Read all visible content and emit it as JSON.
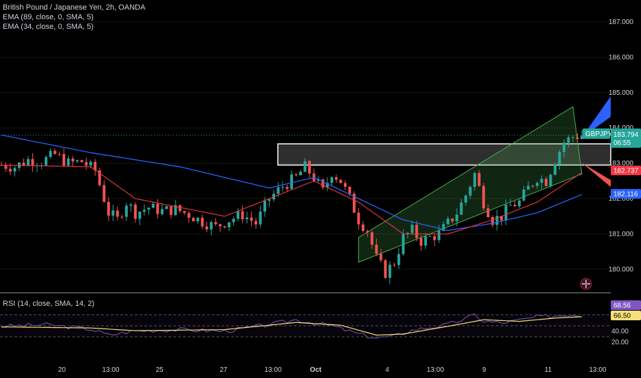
{
  "legend": {
    "symbol_line": "British Pound / Japanese Yen, 2h, OANDA",
    "ema_89": "EMA (89, close, 0, SMA, 5)",
    "ema_34": "EMA (34, close, 0, SMA, 5)",
    "rsi": "RSI (14, close, SMA, 14, 2)"
  },
  "price_tags": {
    "symbol": "GBPJPY",
    "last": "183.794",
    "countdown": "06:55",
    "ema_34": "182.737",
    "ema_89": "182.116"
  },
  "rsi_tags": {
    "rsi": "68.56",
    "rsi_ma": "66.50"
  },
  "colors": {
    "up": "#26a69a",
    "down": "#ef5350",
    "ema_89": "#2962ff",
    "ema_34": "#f23645",
    "rsi": "#7e57c2",
    "rsi_ma": "#f7e07a",
    "channel": "#4caf50"
  },
  "chart_data": {
    "type": "candlestick",
    "symbol": "GBPJPY",
    "timeframe": "2h",
    "y_ticks": [
      187.0,
      186.0,
      185.0,
      184.0,
      183.0,
      182.0,
      181.0,
      180.0
    ],
    "x_ticks": [
      "20",
      "13:00",
      "25",
      "27",
      "13:00",
      "Oct",
      "4",
      "13:00",
      "9",
      "11",
      "13:00"
    ],
    "rsi_ticks": [
      40.0,
      20.0
    ],
    "rsi_levels": [
      70,
      30
    ],
    "ylim": [
      179.3,
      187.5
    ],
    "close_path": [
      [
        0,
        182.95
      ],
      [
        3,
        182.9
      ],
      [
        6,
        183.1
      ],
      [
        9,
        183.05
      ],
      [
        12,
        183.25
      ],
      [
        15,
        183.0
      ],
      [
        18,
        183.05
      ],
      [
        21,
        182.8
      ],
      [
        24,
        181.6
      ],
      [
        26,
        181.4
      ],
      [
        28,
        181.9
      ],
      [
        30,
        181.6
      ],
      [
        33,
        181.75
      ],
      [
        36,
        181.65
      ],
      [
        39,
        181.7
      ],
      [
        42,
        181.55
      ],
      [
        45,
        181.35
      ],
      [
        48,
        181.2
      ],
      [
        51,
        181.4
      ],
      [
        54,
        181.55
      ],
      [
        57,
        181.3
      ],
      [
        60,
        182.0
      ],
      [
        63,
        182.35
      ],
      [
        66,
        182.6
      ],
      [
        68,
        182.9
      ],
      [
        70,
        182.6
      ],
      [
        72,
        182.2
      ],
      [
        74,
        182.75
      ],
      [
        76,
        182.5
      ],
      [
        78,
        182.0
      ],
      [
        80,
        181.4
      ],
      [
        82,
        181.1
      ],
      [
        84,
        180.3
      ],
      [
        86,
        179.9
      ],
      [
        88,
        180.2
      ],
      [
        90,
        180.9
      ],
      [
        92,
        181.1
      ],
      [
        94,
        180.8
      ],
      [
        96,
        180.9
      ],
      [
        98,
        181.0
      ],
      [
        100,
        181.3
      ],
      [
        102,
        181.6
      ],
      [
        104,
        182.1
      ],
      [
        106,
        182.7
      ],
      [
        108,
        181.9
      ],
      [
        110,
        181.4
      ],
      [
        112,
        181.5
      ],
      [
        114,
        181.8
      ],
      [
        116,
        181.9
      ],
      [
        118,
        182.3
      ],
      [
        120,
        182.6
      ],
      [
        122,
        182.5
      ],
      [
        124,
        183.1
      ],
      [
        126,
        183.6
      ],
      [
        128,
        183.75
      ],
      [
        130,
        183.794
      ]
    ],
    "ema_89_path": [
      [
        0,
        183.8
      ],
      [
        20,
        183.3
      ],
      [
        40,
        182.9
      ],
      [
        60,
        182.3
      ],
      [
        70,
        182.6
      ],
      [
        80,
        182.0
      ],
      [
        90,
        181.4
      ],
      [
        100,
        181.1
      ],
      [
        110,
        181.3
      ],
      [
        120,
        181.6
      ],
      [
        130,
        182.116
      ]
    ],
    "ema_34_path": [
      [
        0,
        182.95
      ],
      [
        20,
        182.9
      ],
      [
        30,
        182.0
      ],
      [
        50,
        181.5
      ],
      [
        70,
        182.5
      ],
      [
        80,
        181.9
      ],
      [
        90,
        181.0
      ],
      [
        100,
        181.0
      ],
      [
        110,
        181.4
      ],
      [
        120,
        181.9
      ],
      [
        130,
        182.737
      ]
    ],
    "channel": {
      "upper": [
        [
          80,
          180.9
        ],
        [
          128,
          184.6
        ]
      ],
      "lower": [
        [
          80,
          180.2
        ],
        [
          130,
          182.7
        ]
      ]
    },
    "resistance_zone": [
      182.95,
      183.55
    ],
    "rsi_path": [
      [
        0,
        49
      ],
      [
        10,
        52
      ],
      [
        20,
        44
      ],
      [
        24,
        33
      ],
      [
        30,
        41
      ],
      [
        40,
        43
      ],
      [
        50,
        40
      ],
      [
        60,
        52
      ],
      [
        66,
        61
      ],
      [
        70,
        55
      ],
      [
        74,
        50
      ],
      [
        80,
        35
      ],
      [
        84,
        28
      ],
      [
        88,
        31
      ],
      [
        92,
        42
      ],
      [
        96,
        47
      ],
      [
        100,
        52
      ],
      [
        104,
        63
      ],
      [
        106,
        70
      ],
      [
        108,
        58
      ],
      [
        112,
        55
      ],
      [
        116,
        60
      ],
      [
        120,
        66
      ],
      [
        124,
        68
      ],
      [
        128,
        71
      ],
      [
        130,
        68.56
      ]
    ],
    "rsi_ma_path": [
      [
        0,
        48
      ],
      [
        20,
        46
      ],
      [
        30,
        41
      ],
      [
        50,
        43
      ],
      [
        66,
        56
      ],
      [
        76,
        51
      ],
      [
        84,
        33
      ],
      [
        90,
        35
      ],
      [
        100,
        49
      ],
      [
        108,
        61
      ],
      [
        116,
        58
      ],
      [
        124,
        64
      ],
      [
        130,
        66.5
      ]
    ]
  }
}
